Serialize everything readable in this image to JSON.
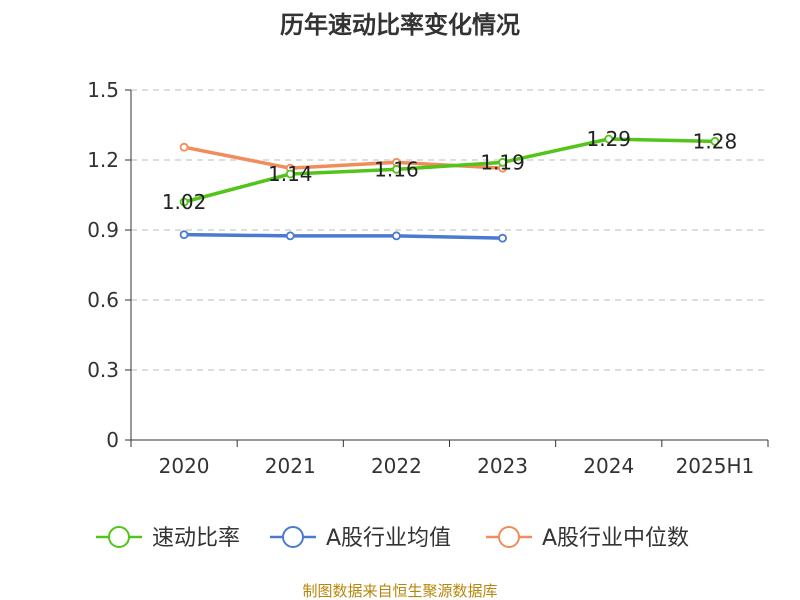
{
  "chart_data": {
    "type": "line",
    "title": "历年速动比率变化情况",
    "categories": [
      "2020",
      "2021",
      "2022",
      "2023",
      "2024",
      "2025H1"
    ],
    "ylim": [
      0,
      1.5
    ],
    "yticks": [
      "0",
      "0.3",
      "0.6",
      "0.9",
      "1.2",
      "1.5"
    ],
    "ytick_values": [
      0,
      0.3,
      0.6,
      0.9,
      1.2,
      1.5
    ],
    "grid": true,
    "legend_position": "bottom",
    "series": [
      {
        "name": "速动比率",
        "color": "#52c41a",
        "values": [
          1.02,
          1.14,
          1.16,
          1.19,
          1.29,
          1.28
        ],
        "labels": [
          "1.02",
          "1.14",
          "1.16",
          "1.19",
          "1.29",
          "1.28"
        ]
      },
      {
        "name": "A股行业均值",
        "color": "#4a7bd0",
        "values": [
          0.88,
          0.875,
          0.875,
          0.865,
          null,
          null
        ]
      },
      {
        "name": "A股行业中位数",
        "color": "#f28c5a",
        "values": [
          1.255,
          1.165,
          1.19,
          1.165,
          null,
          null
        ]
      }
    ]
  },
  "source": "制图数据来自恒生聚源数据库"
}
